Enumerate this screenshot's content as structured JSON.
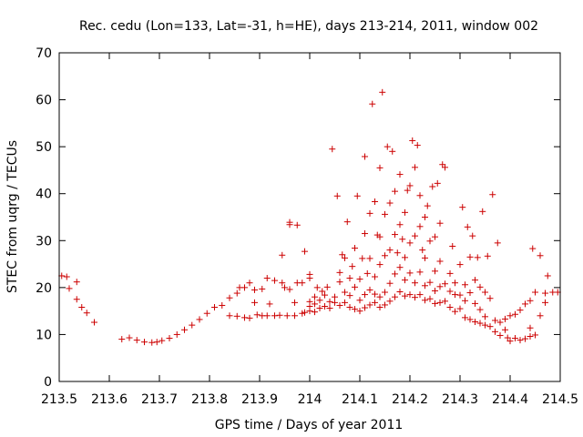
{
  "chart_data": {
    "type": "scatter",
    "title": "Rec. cedu (Lon=133, Lat=-31, h=HE), days 213-214, 2011, window 002",
    "xlabel": "GPS time / Days of year 2011",
    "ylabel": "STEC from uqrg / TECUs",
    "xlim": [
      213.5,
      214.5
    ],
    "ylim": [
      0,
      70
    ],
    "xticks": [
      "213.5",
      "213.6",
      "213.7",
      "213.8",
      "213.9",
      "214",
      "214.1",
      "214.2",
      "214.3",
      "214.4",
      "214.5"
    ],
    "yticks": [
      "0",
      "10",
      "20",
      "30",
      "40",
      "50",
      "60",
      "70"
    ],
    "grid": false,
    "legend": "none",
    "marker": "plus",
    "color": "#cc0000",
    "points": [
      [
        213.505,
        22.5
      ],
      [
        213.515,
        22.3
      ],
      [
        213.52,
        19.8
      ],
      [
        213.535,
        21.2
      ],
      [
        213.535,
        17.5
      ],
      [
        213.545,
        15.8
      ],
      [
        213.555,
        14.6
      ],
      [
        213.57,
        12.6
      ],
      [
        213.625,
        9.0
      ],
      [
        213.64,
        9.3
      ],
      [
        213.655,
        8.8
      ],
      [
        213.67,
        8.4
      ],
      [
        213.685,
        8.3
      ],
      [
        213.695,
        8.4
      ],
      [
        213.705,
        8.7
      ],
      [
        213.72,
        9.2
      ],
      [
        213.735,
        10.0
      ],
      [
        213.75,
        11.0
      ],
      [
        213.765,
        12.0
      ],
      [
        213.78,
        13.2
      ],
      [
        213.795,
        14.5
      ],
      [
        213.81,
        15.8
      ],
      [
        213.825,
        16.2
      ],
      [
        213.84,
        17.8
      ],
      [
        213.855,
        18.8
      ],
      [
        213.86,
        20.0
      ],
      [
        213.87,
        20.0
      ],
      [
        213.88,
        21.0
      ],
      [
        213.89,
        19.5
      ],
      [
        213.84,
        14.0
      ],
      [
        213.855,
        13.9
      ],
      [
        213.87,
        13.6
      ],
      [
        213.88,
        13.5
      ],
      [
        213.895,
        14.2
      ],
      [
        213.905,
        14.0
      ],
      [
        213.915,
        14.0
      ],
      [
        213.93,
        14.0
      ],
      [
        213.94,
        14.1
      ],
      [
        213.955,
        14.0
      ],
      [
        213.97,
        14.0
      ],
      [
        213.985,
        14.5
      ],
      [
        213.99,
        14.7
      ],
      [
        213.905,
        19.7
      ],
      [
        213.915,
        22.0
      ],
      [
        213.93,
        21.5
      ],
      [
        213.945,
        21.0
      ],
      [
        213.95,
        20.0
      ],
      [
        213.96,
        19.6
      ],
      [
        213.975,
        21.0
      ],
      [
        213.985,
        21.0
      ],
      [
        213.92,
        16.5
      ],
      [
        213.945,
        26.9
      ],
      [
        213.96,
        33.4
      ],
      [
        213.96,
        33.9
      ],
      [
        213.975,
        33.3
      ],
      [
        213.99,
        27.7
      ],
      [
        213.89,
        16.8
      ],
      [
        213.97,
        16.8
      ],
      [
        214.0,
        15.0
      ],
      [
        214.0,
        16.0
      ],
      [
        214.0,
        17.0
      ],
      [
        214.0,
        22.0
      ],
      [
        214.0,
        22.8
      ],
      [
        214.01,
        14.8
      ],
      [
        214.01,
        16.5
      ],
      [
        214.01,
        18.0
      ],
      [
        214.015,
        20.0
      ],
      [
        214.02,
        15.6
      ],
      [
        214.02,
        17.3
      ],
      [
        214.025,
        19.2
      ],
      [
        214.03,
        16.0
      ],
      [
        214.03,
        18.4
      ],
      [
        214.035,
        20.1
      ],
      [
        214.04,
        15.6
      ],
      [
        214.04,
        17.0
      ],
      [
        214.045,
        49.5
      ],
      [
        214.05,
        16.8
      ],
      [
        214.05,
        18.0
      ],
      [
        214.055,
        39.5
      ],
      [
        214.06,
        16.2
      ],
      [
        214.06,
        21.2
      ],
      [
        214.06,
        23.2
      ],
      [
        214.065,
        27.0
      ],
      [
        214.07,
        16.8
      ],
      [
        214.07,
        19.0
      ],
      [
        214.07,
        26.3
      ],
      [
        214.075,
        34.0
      ],
      [
        214.08,
        15.8
      ],
      [
        214.08,
        18.3
      ],
      [
        214.08,
        22.0
      ],
      [
        214.085,
        24.5
      ],
      [
        214.09,
        15.4
      ],
      [
        214.09,
        20.1
      ],
      [
        214.09,
        28.4
      ],
      [
        214.095,
        39.5
      ],
      [
        214.1,
        15.0
      ],
      [
        214.1,
        17.3
      ],
      [
        214.1,
        21.8
      ],
      [
        214.105,
        26.2
      ],
      [
        214.11,
        15.7
      ],
      [
        214.11,
        18.5
      ],
      [
        214.11,
        31.5
      ],
      [
        214.11,
        47.9
      ],
      [
        214.115,
        23.0
      ],
      [
        214.12,
        16.3
      ],
      [
        214.12,
        19.5
      ],
      [
        214.12,
        26.2
      ],
      [
        214.12,
        35.8
      ],
      [
        214.125,
        59.1
      ],
      [
        214.13,
        16.8
      ],
      [
        214.13,
        18.6
      ],
      [
        214.13,
        22.3
      ],
      [
        214.13,
        38.3
      ],
      [
        214.135,
        31.2
      ],
      [
        214.14,
        15.8
      ],
      [
        214.14,
        18.0
      ],
      [
        214.14,
        24.9
      ],
      [
        214.14,
        30.8
      ],
      [
        214.14,
        45.5
      ],
      [
        214.145,
        61.6
      ],
      [
        214.15,
        16.3
      ],
      [
        214.15,
        19.0
      ],
      [
        214.15,
        26.8
      ],
      [
        214.15,
        35.6
      ],
      [
        214.155,
        50.0
      ],
      [
        214.16,
        17.1
      ],
      [
        214.16,
        20.9
      ],
      [
        214.16,
        28.0
      ],
      [
        214.16,
        38.0
      ],
      [
        214.165,
        49.0
      ],
      [
        214.17,
        18.0
      ],
      [
        214.17,
        22.9
      ],
      [
        214.17,
        31.3
      ],
      [
        214.17,
        40.5
      ],
      [
        214.175,
        27.4
      ],
      [
        214.18,
        19.1
      ],
      [
        214.18,
        24.3
      ],
      [
        214.18,
        33.4
      ],
      [
        214.18,
        44.1
      ],
      [
        214.185,
        30.3
      ],
      [
        214.19,
        18.2
      ],
      [
        214.19,
        21.6
      ],
      [
        214.19,
        26.4
      ],
      [
        214.19,
        36.0
      ],
      [
        214.195,
        40.7
      ],
      [
        214.2,
        18.5
      ],
      [
        214.2,
        23.1
      ],
      [
        214.2,
        29.5
      ],
      [
        214.2,
        41.7
      ],
      [
        214.205,
        51.3
      ],
      [
        214.21,
        17.9
      ],
      [
        214.21,
        21.0
      ],
      [
        214.21,
        31.0
      ],
      [
        214.21,
        45.6
      ],
      [
        214.215,
        50.3
      ],
      [
        214.22,
        18.5
      ],
      [
        214.22,
        23.3
      ],
      [
        214.22,
        33.0
      ],
      [
        214.22,
        39.6
      ],
      [
        214.225,
        28.0
      ],
      [
        214.23,
        17.3
      ],
      [
        214.23,
        20.4
      ],
      [
        214.23,
        26.3
      ],
      [
        214.23,
        35.0
      ],
      [
        214.235,
        37.4
      ],
      [
        214.24,
        17.6
      ],
      [
        214.24,
        21.1
      ],
      [
        214.24,
        29.9
      ],
      [
        214.245,
        41.5
      ],
      [
        214.25,
        16.6
      ],
      [
        214.25,
        19.3
      ],
      [
        214.25,
        23.5
      ],
      [
        214.25,
        30.8
      ],
      [
        214.255,
        42.2
      ],
      [
        214.26,
        16.8
      ],
      [
        214.26,
        20.2
      ],
      [
        214.26,
        25.6
      ],
      [
        214.26,
        33.7
      ],
      [
        214.265,
        46.2
      ],
      [
        214.27,
        17.1
      ],
      [
        214.27,
        20.8
      ],
      [
        214.27,
        45.6
      ],
      [
        214.28,
        15.8
      ],
      [
        214.28,
        19.2
      ],
      [
        214.28,
        23.0
      ],
      [
        214.285,
        28.8
      ],
      [
        214.29,
        14.9
      ],
      [
        214.29,
        18.5
      ],
      [
        214.29,
        21.0
      ],
      [
        214.3,
        15.5
      ],
      [
        214.3,
        18.4
      ],
      [
        214.3,
        24.9
      ],
      [
        214.305,
        37.1
      ],
      [
        214.31,
        13.6
      ],
      [
        214.31,
        17.2
      ],
      [
        214.31,
        20.6
      ],
      [
        214.315,
        32.9
      ],
      [
        214.32,
        13.2
      ],
      [
        214.32,
        18.9
      ],
      [
        214.32,
        26.5
      ],
      [
        214.325,
        31.0
      ],
      [
        214.33,
        12.7
      ],
      [
        214.33,
        16.6
      ],
      [
        214.33,
        21.6
      ],
      [
        214.335,
        26.4
      ],
      [
        214.34,
        12.4
      ],
      [
        214.34,
        15.3
      ],
      [
        214.34,
        20.1
      ],
      [
        214.345,
        36.2
      ],
      [
        214.35,
        12.0
      ],
      [
        214.35,
        13.8
      ],
      [
        214.35,
        19.0
      ],
      [
        214.355,
        26.7
      ],
      [
        214.36,
        11.7
      ],
      [
        214.36,
        17.7
      ],
      [
        214.365,
        39.8
      ],
      [
        214.37,
        10.6
      ],
      [
        214.37,
        13.0
      ],
      [
        214.375,
        29.5
      ],
      [
        214.38,
        9.8
      ],
      [
        214.38,
        12.6
      ],
      [
        214.39,
        11.0
      ],
      [
        214.39,
        13.3
      ],
      [
        214.395,
        9.3
      ],
      [
        214.4,
        8.6
      ],
      [
        214.4,
        14.0
      ],
      [
        214.41,
        9.2
      ],
      [
        214.41,
        14.3
      ],
      [
        214.42,
        8.8
      ],
      [
        214.42,
        15.2
      ],
      [
        214.43,
        9.1
      ],
      [
        214.43,
        16.5
      ],
      [
        214.44,
        9.6
      ],
      [
        214.44,
        11.4
      ],
      [
        214.44,
        17.2
      ],
      [
        214.445,
        28.3
      ],
      [
        214.45,
        9.9
      ],
      [
        214.45,
        19.0
      ],
      [
        214.46,
        14.0
      ],
      [
        214.46,
        26.8
      ],
      [
        214.47,
        16.8
      ],
      [
        214.47,
        18.8
      ],
      [
        214.475,
        22.5
      ],
      [
        214.485,
        19.0
      ],
      [
        214.495,
        19.0
      ]
    ]
  }
}
